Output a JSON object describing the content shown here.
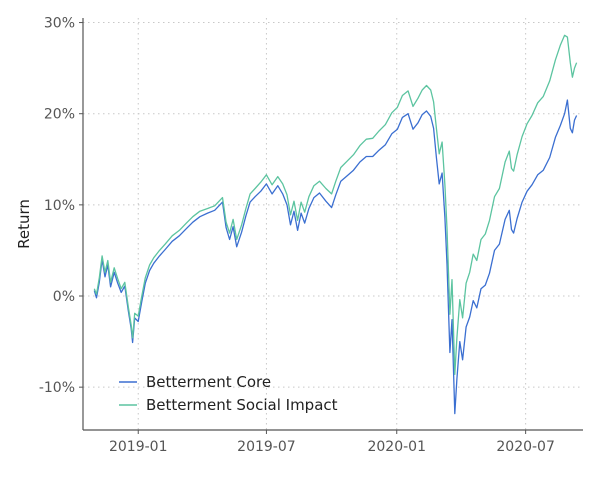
{
  "chart_data": {
    "type": "line",
    "title": "",
    "xlabel": "",
    "ylabel": "Return",
    "x_ticks": [
      "2019-01",
      "2019-07",
      "2020-01",
      "2020-07"
    ],
    "y_ticks": [
      "-10%",
      "0%",
      "10%",
      "20%",
      "30%"
    ],
    "xlim": [
      "2018-10-15",
      "2020-09-20"
    ],
    "ylim": [
      -14.7,
      30.5
    ],
    "grid": true,
    "legend": "bottom-left",
    "colors": {
      "core": "#3b6fd1",
      "social": "#5cc4a0"
    },
    "series": [
      {
        "name": "Betterment Core",
        "x": [
          "2018-10-31",
          "2018-11-03",
          "2018-11-07",
          "2018-11-11",
          "2018-11-15",
          "2018-11-19",
          "2018-11-23",
          "2018-11-28",
          "2018-12-03",
          "2018-12-08",
          "2018-12-13",
          "2018-12-18",
          "2018-12-22",
          "2018-12-24",
          "2018-12-27",
          "2019-01-01",
          "2019-01-06",
          "2019-01-11",
          "2019-01-17",
          "2019-01-23",
          "2019-01-31",
          "2019-02-08",
          "2019-02-18",
          "2019-02-28",
          "2019-03-10",
          "2019-03-19",
          "2019-03-29",
          "2019-04-09",
          "2019-04-19",
          "2019-04-30",
          "2019-05-05",
          "2019-05-10",
          "2019-05-15",
          "2019-05-20",
          "2019-05-27",
          "2019-06-02",
          "2019-06-08",
          "2019-06-15",
          "2019-06-23",
          "2019-07-01",
          "2019-07-09",
          "2019-07-17",
          "2019-07-24",
          "2019-07-30",
          "2019-08-04",
          "2019-08-09",
          "2019-08-14",
          "2019-08-19",
          "2019-08-24",
          "2019-08-30",
          "2019-09-06",
          "2019-09-14",
          "2019-09-23",
          "2019-10-01",
          "2019-10-07",
          "2019-10-14",
          "2019-10-23",
          "2019-11-01",
          "2019-11-10",
          "2019-11-19",
          "2019-11-28",
          "2019-12-07",
          "2019-12-16",
          "2019-12-25",
          "2020-01-02",
          "2020-01-09",
          "2020-01-17",
          "2020-01-24",
          "2020-01-31",
          "2020-02-06",
          "2020-02-12",
          "2020-02-18",
          "2020-02-22",
          "2020-02-26",
          "2020-03-01",
          "2020-03-05",
          "2020-03-09",
          "2020-03-12",
          "2020-03-16",
          "2020-03-19",
          "2020-03-23",
          "2020-03-26",
          "2020-03-30",
          "2020-04-03",
          "2020-04-08",
          "2020-04-13",
          "2020-04-18",
          "2020-04-23",
          "2020-04-29",
          "2020-05-05",
          "2020-05-11",
          "2020-05-18",
          "2020-05-25",
          "2020-06-02",
          "2020-06-08",
          "2020-06-11",
          "2020-06-14",
          "2020-06-19",
          "2020-06-26",
          "2020-07-03",
          "2020-07-10",
          "2020-07-18",
          "2020-07-26",
          "2020-08-04",
          "2020-08-12",
          "2020-08-19",
          "2020-08-25",
          "2020-08-29",
          "2020-09-02",
          "2020-09-05",
          "2020-09-08",
          "2020-09-11"
        ],
        "values": [
          0.6,
          -0.2,
          1.5,
          4.0,
          2.1,
          3.4,
          1.0,
          2.6,
          1.4,
          0.4,
          1.1,
          -1.6,
          -3.6,
          -5.1,
          -2.4,
          -2.8,
          -0.6,
          1.4,
          2.8,
          3.6,
          4.4,
          5.1,
          6.0,
          6.6,
          7.4,
          8.1,
          8.7,
          9.1,
          9.4,
          10.3,
          7.5,
          6.2,
          7.6,
          5.4,
          7.0,
          8.8,
          10.3,
          10.9,
          11.5,
          12.3,
          11.2,
          12.1,
          11.2,
          10.0,
          7.8,
          9.3,
          7.2,
          9.1,
          8.0,
          9.6,
          10.8,
          11.3,
          10.4,
          9.7,
          11.1,
          12.6,
          13.2,
          13.8,
          14.7,
          15.3,
          15.3,
          16.0,
          16.6,
          17.8,
          18.3,
          19.6,
          20.0,
          18.3,
          19.0,
          19.9,
          20.3,
          19.7,
          18.4,
          15.2,
          12.3,
          13.5,
          8.6,
          3.5,
          -6.2,
          -2.6,
          -12.9,
          -9.1,
          -5.0,
          -7.0,
          -3.4,
          -2.3,
          -0.5,
          -1.3,
          0.8,
          1.2,
          2.5,
          5.0,
          5.7,
          8.4,
          9.4,
          7.3,
          6.9,
          8.5,
          10.3,
          11.5,
          12.2,
          13.3,
          13.8,
          15.2,
          17.4,
          18.7,
          20.0,
          21.5,
          18.4,
          17.9,
          19.3,
          19.8
        ]
      },
      {
        "name": "Betterment Social Impact",
        "x": [
          "2018-10-31",
          "2018-11-03",
          "2018-11-07",
          "2018-11-11",
          "2018-11-15",
          "2018-11-19",
          "2018-11-23",
          "2018-11-28",
          "2018-12-03",
          "2018-12-08",
          "2018-12-13",
          "2018-12-18",
          "2018-12-22",
          "2018-12-24",
          "2018-12-27",
          "2019-01-01",
          "2019-01-06",
          "2019-01-11",
          "2019-01-17",
          "2019-01-23",
          "2019-01-31",
          "2019-02-08",
          "2019-02-18",
          "2019-02-28",
          "2019-03-10",
          "2019-03-19",
          "2019-03-29",
          "2019-04-09",
          "2019-04-19",
          "2019-04-30",
          "2019-05-05",
          "2019-05-10",
          "2019-05-15",
          "2019-05-20",
          "2019-05-27",
          "2019-06-02",
          "2019-06-08",
          "2019-06-15",
          "2019-06-23",
          "2019-07-01",
          "2019-07-09",
          "2019-07-17",
          "2019-07-24",
          "2019-07-30",
          "2019-08-04",
          "2019-08-09",
          "2019-08-14",
          "2019-08-19",
          "2019-08-24",
          "2019-08-30",
          "2019-09-06",
          "2019-09-14",
          "2019-09-23",
          "2019-10-01",
          "2019-10-07",
          "2019-10-14",
          "2019-10-23",
          "2019-11-01",
          "2019-11-10",
          "2019-11-19",
          "2019-11-28",
          "2019-12-07",
          "2019-12-16",
          "2019-12-25",
          "2020-01-02",
          "2020-01-09",
          "2020-01-17",
          "2020-01-24",
          "2020-01-31",
          "2020-02-06",
          "2020-02-12",
          "2020-02-18",
          "2020-02-22",
          "2020-02-26",
          "2020-03-01",
          "2020-03-05",
          "2020-03-09",
          "2020-03-12",
          "2020-03-16",
          "2020-03-19",
          "2020-03-23",
          "2020-03-26",
          "2020-03-30",
          "2020-04-03",
          "2020-04-08",
          "2020-04-13",
          "2020-04-18",
          "2020-04-23",
          "2020-04-29",
          "2020-05-05",
          "2020-05-11",
          "2020-05-18",
          "2020-05-25",
          "2020-06-02",
          "2020-06-08",
          "2020-06-11",
          "2020-06-14",
          "2020-06-19",
          "2020-06-26",
          "2020-07-03",
          "2020-07-10",
          "2020-07-18",
          "2020-07-26",
          "2020-08-04",
          "2020-08-12",
          "2020-08-19",
          "2020-08-25",
          "2020-08-29",
          "2020-09-02",
          "2020-09-05",
          "2020-09-08",
          "2020-09-11"
        ],
        "values": [
          0.8,
          0.2,
          2.0,
          4.4,
          2.6,
          3.9,
          1.5,
          3.1,
          1.9,
          0.8,
          1.5,
          -1.2,
          -3.2,
          -4.6,
          -1.9,
          -2.2,
          0.0,
          2.0,
          3.4,
          4.2,
          5.0,
          5.7,
          6.6,
          7.2,
          8.0,
          8.7,
          9.3,
          9.6,
          9.9,
          10.8,
          8.1,
          6.9,
          8.4,
          6.2,
          7.8,
          9.6,
          11.2,
          11.8,
          12.5,
          13.3,
          12.2,
          13.1,
          12.3,
          11.1,
          8.9,
          10.4,
          8.3,
          10.3,
          9.2,
          10.9,
          12.1,
          12.6,
          11.8,
          11.2,
          12.6,
          14.1,
          14.8,
          15.5,
          16.5,
          17.2,
          17.3,
          18.1,
          18.8,
          20.1,
          20.7,
          22.0,
          22.5,
          20.8,
          21.7,
          22.6,
          23.1,
          22.6,
          21.3,
          18.4,
          15.6,
          16.9,
          12.2,
          7.4,
          -2.0,
          1.8,
          -8.6,
          -4.6,
          -0.4,
          -2.4,
          1.4,
          2.6,
          4.6,
          3.9,
          6.2,
          6.8,
          8.3,
          10.9,
          11.8,
          14.7,
          15.9,
          14.0,
          13.7,
          15.5,
          17.5,
          18.9,
          19.8,
          21.2,
          21.9,
          23.6,
          25.9,
          27.5,
          28.6,
          28.4,
          25.6,
          24.0,
          25.0,
          25.6
        ]
      }
    ]
  }
}
